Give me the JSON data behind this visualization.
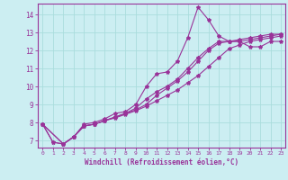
{
  "xlabel": "Windchill (Refroidissement éolien,°C)",
  "ylabel": "",
  "background_color": "#cceef2",
  "line_color": "#993399",
  "grid_color": "#aadddd",
  "xlim": [
    -0.5,
    23.4
  ],
  "ylim": [
    6.6,
    14.6
  ],
  "yticks": [
    7,
    8,
    9,
    10,
    11,
    12,
    13,
    14
  ],
  "xticks": [
    0,
    1,
    2,
    3,
    4,
    5,
    6,
    7,
    8,
    9,
    10,
    11,
    12,
    13,
    14,
    15,
    16,
    17,
    18,
    19,
    20,
    21,
    22,
    23
  ],
  "line1_x": [
    0,
    1,
    2,
    3,
    4,
    5,
    6,
    7,
    8,
    9,
    10,
    11,
    12,
    13,
    14,
    15,
    16,
    17,
    18,
    19,
    20,
    21,
    22,
    23
  ],
  "line1_y": [
    7.9,
    6.9,
    6.8,
    7.2,
    7.9,
    8.0,
    8.2,
    8.5,
    8.6,
    9.0,
    10.0,
    10.7,
    10.8,
    11.4,
    12.7,
    14.4,
    13.7,
    12.8,
    12.5,
    12.5,
    12.2,
    12.2,
    12.5,
    12.5
  ],
  "line2_x": [
    0,
    1,
    2,
    3,
    4,
    5,
    6,
    7,
    8,
    9,
    10,
    11,
    12,
    13,
    14,
    15,
    16,
    17,
    18,
    19,
    20,
    21,
    22,
    23
  ],
  "line2_y": [
    7.9,
    6.9,
    6.8,
    7.2,
    7.8,
    7.9,
    8.1,
    8.3,
    8.5,
    8.8,
    9.3,
    9.7,
    10.0,
    10.4,
    11.0,
    11.6,
    12.1,
    12.5,
    12.5,
    12.6,
    12.7,
    12.8,
    12.9,
    12.9
  ],
  "line3_x": [
    0,
    2,
    3,
    4,
    5,
    6,
    7,
    8,
    9,
    10,
    11,
    12,
    13,
    14,
    15,
    16,
    17,
    18,
    19,
    20,
    21,
    22,
    23
  ],
  "line3_y": [
    7.9,
    6.8,
    7.2,
    7.8,
    7.9,
    8.1,
    8.3,
    8.5,
    8.7,
    9.0,
    9.5,
    9.9,
    10.3,
    10.8,
    11.4,
    12.0,
    12.4,
    12.5,
    12.5,
    12.6,
    12.7,
    12.8,
    12.9
  ],
  "line4_x": [
    0,
    2,
    3,
    4,
    5,
    6,
    7,
    8,
    9,
    10,
    11,
    12,
    13,
    14,
    15,
    16,
    17,
    18,
    19,
    20,
    21,
    22,
    23
  ],
  "line4_y": [
    7.9,
    6.8,
    7.2,
    7.8,
    7.9,
    8.1,
    8.25,
    8.45,
    8.65,
    8.9,
    9.2,
    9.5,
    9.8,
    10.2,
    10.6,
    11.1,
    11.6,
    12.1,
    12.3,
    12.5,
    12.6,
    12.7,
    12.8
  ]
}
